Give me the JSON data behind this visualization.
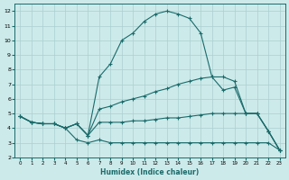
{
  "xlabel": "Humidex (Indice chaleur)",
  "background_color": "#cdeaea",
  "grid_color": "#aacfcf",
  "line_color": "#1a6b6b",
  "xlim": [
    -0.5,
    23.5
  ],
  "ylim": [
    2,
    12.5
  ],
  "xticks": [
    0,
    1,
    2,
    3,
    4,
    5,
    6,
    7,
    8,
    9,
    10,
    11,
    12,
    13,
    14,
    15,
    16,
    17,
    18,
    19,
    20,
    21,
    22,
    23
  ],
  "yticks": [
    2,
    3,
    4,
    5,
    6,
    7,
    8,
    9,
    10,
    11,
    12
  ],
  "line_peak_x": [
    0,
    1,
    2,
    3,
    4,
    5,
    6,
    7,
    8,
    9,
    10,
    11,
    12,
    13,
    14,
    15,
    16,
    17,
    18,
    19,
    20,
    21,
    22,
    23
  ],
  "line_peak_y": [
    4.8,
    4.4,
    4.3,
    4.3,
    4.0,
    4.3,
    3.5,
    7.5,
    8.4,
    10.0,
    10.5,
    11.3,
    11.8,
    12.0,
    11.8,
    11.5,
    10.5,
    7.5,
    6.6,
    6.8,
    5.0,
    5.0,
    3.8,
    2.5
  ],
  "line_diag_x": [
    0,
    1,
    2,
    3,
    4,
    5,
    6,
    7,
    8,
    9,
    10,
    11,
    12,
    13,
    14,
    15,
    16,
    17,
    18,
    19,
    20,
    21,
    22,
    23
  ],
  "line_diag_y": [
    4.8,
    4.4,
    4.3,
    4.3,
    4.0,
    4.3,
    3.5,
    5.3,
    5.5,
    5.8,
    6.0,
    6.2,
    6.5,
    6.7,
    7.0,
    7.2,
    7.4,
    7.5,
    7.5,
    7.2,
    5.0,
    5.0,
    3.8,
    2.5
  ],
  "line_mid_x": [
    0,
    1,
    2,
    3,
    4,
    5,
    6,
    7,
    8,
    9,
    10,
    11,
    12,
    13,
    14,
    15,
    16,
    17,
    18,
    19,
    20,
    21,
    22,
    23
  ],
  "line_mid_y": [
    4.8,
    4.4,
    4.3,
    4.3,
    4.0,
    4.3,
    3.5,
    4.4,
    4.4,
    4.4,
    4.5,
    4.5,
    4.6,
    4.7,
    4.7,
    4.8,
    4.9,
    5.0,
    5.0,
    5.0,
    5.0,
    5.0,
    3.8,
    2.5
  ],
  "line_low_x": [
    0,
    1,
    2,
    3,
    4,
    5,
    6,
    7,
    8,
    9,
    10,
    11,
    12,
    13,
    14,
    15,
    16,
    17,
    18,
    19,
    20,
    21,
    22,
    23
  ],
  "line_low_y": [
    4.8,
    4.4,
    4.3,
    4.3,
    4.0,
    3.2,
    3.0,
    3.2,
    3.0,
    3.0,
    3.0,
    3.0,
    3.0,
    3.0,
    3.0,
    3.0,
    3.0,
    3.0,
    3.0,
    3.0,
    3.0,
    3.0,
    3.0,
    2.5
  ]
}
